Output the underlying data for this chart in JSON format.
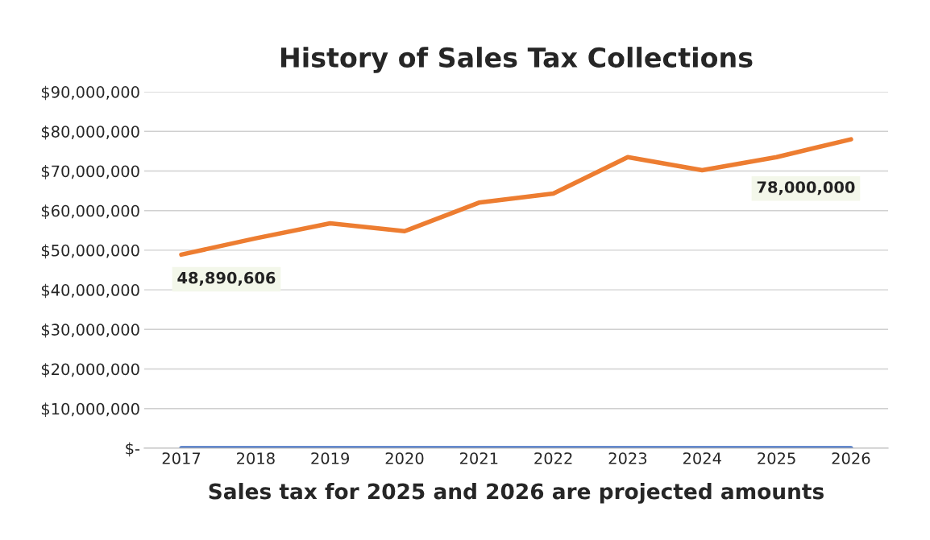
{
  "chart_data": {
    "type": "line",
    "title": "History of Sales Tax Collections",
    "xlabel": "Sales tax for 2025 and 2026 are projected amounts",
    "categories": [
      "2017",
      "2018",
      "2019",
      "2020",
      "2021",
      "2022",
      "2023",
      "2024",
      "2025",
      "2026"
    ],
    "series": [
      {
        "color": "#ed7d31",
        "values": [
          48890606,
          53000000,
          56800000,
          54800000,
          62000000,
          64300000,
          73500000,
          70200000,
          73500000,
          78000000
        ],
        "value_labels": [
          "48,890,606",
          null,
          null,
          null,
          null,
          null,
          null,
          null,
          null,
          "78,000,000"
        ]
      },
      {
        "color": "#4472c4",
        "values": [
          0,
          0,
          0,
          0,
          0,
          0,
          0,
          0,
          0,
          0
        ]
      }
    ],
    "ylim": [
      0,
      90000000
    ],
    "yticks": [
      {
        "value": 0,
        "label": "$-"
      },
      {
        "value": 10000000,
        "label": "$10,000,000"
      },
      {
        "value": 20000000,
        "label": "$20,000,000"
      },
      {
        "value": 30000000,
        "label": "$30,000,000"
      },
      {
        "value": 40000000,
        "label": "$40,000,000"
      },
      {
        "value": 50000000,
        "label": "$50,000,000"
      },
      {
        "value": 60000000,
        "label": "$60,000,000"
      },
      {
        "value": 70000000,
        "label": "$70,000,000"
      },
      {
        "value": 80000000,
        "label": "$80,000,000"
      },
      {
        "value": 90000000,
        "label": "$90,000,000"
      }
    ],
    "grid": "y",
    "legend": false,
    "marker": "none",
    "line_style": "solid"
  }
}
